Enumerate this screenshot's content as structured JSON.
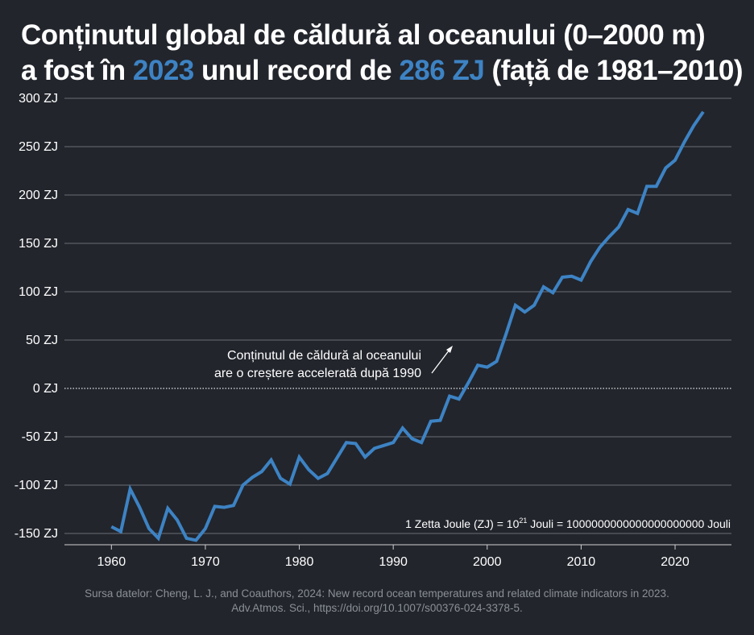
{
  "title": {
    "line1": "Conținutul global de căldură al oceanului (0–2000 m)",
    "line2_part1": "a fost în ",
    "line2_year": "2023",
    "line2_part2": " unul record de ",
    "line2_value": "286 ZJ",
    "line2_part3": " (față de 1981–2010)"
  },
  "colors": {
    "background": "#22252c",
    "line": "#3d83c4",
    "grid": "#6a6d74",
    "text": "#ffffff",
    "footer": "#8b8f96"
  },
  "chart_data": {
    "type": "line",
    "title": "Conținutul global de căldură al oceanului (0–2000 m) a fost în 2023 unul record de 286 ZJ (față de 1981–2010)",
    "xlabel": "",
    "ylabel": "",
    "xlim": [
      1955,
      2026
    ],
    "ylim": [
      -150,
      300
    ],
    "x_ticks": [
      1960,
      1970,
      1980,
      1990,
      2000,
      2010,
      2020
    ],
    "y_ticks": [
      {
        "value": 300,
        "label": "300 ZJ"
      },
      {
        "value": 250,
        "label": "250 ZJ"
      },
      {
        "value": 200,
        "label": "200 ZJ"
      },
      {
        "value": 150,
        "label": "150 ZJ"
      },
      {
        "value": 100,
        "label": "100 ZJ"
      },
      {
        "value": 50,
        "label": "50 ZJ"
      },
      {
        "value": 0,
        "label": "0 ZJ"
      },
      {
        "value": -50,
        "label": "-50 ZJ"
      },
      {
        "value": -100,
        "label": "-100 ZJ"
      },
      {
        "value": -150,
        "label": "-150 ZJ"
      }
    ],
    "grid": true,
    "series": [
      {
        "name": "Conținutul de căldură al oceanului (ZJ)",
        "x": [
          1960,
          1961,
          1962,
          1963,
          1964,
          1965,
          1966,
          1967,
          1968,
          1969,
          1970,
          1971,
          1972,
          1973,
          1974,
          1975,
          1976,
          1977,
          1978,
          1979,
          1980,
          1981,
          1982,
          1983,
          1984,
          1985,
          1986,
          1987,
          1988,
          1989,
          1990,
          1991,
          1992,
          1993,
          1994,
          1995,
          1996,
          1997,
          1998,
          1999,
          2000,
          2001,
          2002,
          2003,
          2004,
          2005,
          2006,
          2007,
          2008,
          2009,
          2010,
          2011,
          2012,
          2013,
          2014,
          2015,
          2016,
          2017,
          2018,
          2019,
          2020,
          2021,
          2022,
          2023
        ],
        "values": [
          -143,
          -148,
          -104,
          -123,
          -145,
          -155,
          -124,
          -136,
          -155,
          -157,
          -145,
          -122,
          -123,
          -121,
          -100,
          -92,
          -86,
          -74,
          -93,
          -99,
          -71,
          -84,
          -93,
          -88,
          -72,
          -56,
          -57,
          -71,
          -62,
          -59,
          -56,
          -41,
          -52,
          -56,
          -34,
          -33,
          -8,
          -11,
          6,
          24,
          22,
          28,
          56,
          86,
          79,
          86,
          105,
          99,
          115,
          116,
          112,
          131,
          146,
          157,
          167,
          185,
          181,
          209,
          209,
          228,
          236,
          255,
          272,
          286
        ]
      }
    ],
    "annotation": {
      "line1": "Conținutul de căldură al oceanului",
      "line2": "are o creștere accelerată după 1990"
    },
    "note": {
      "prefix": "1 Zetta Joule (ZJ) = 10",
      "exponent": "21",
      "suffix": " Jouli = 1000000000000000000000 Jouli"
    }
  },
  "footer": {
    "line1": "Sursa datelor: Cheng, L. J., and Coauthors, 2024: New record ocean temperatures and related climate indicators in 2023.",
    "line2": "Adv.Atmos. Sci., https://doi.org/10.1007/s00376-024-3378-5."
  }
}
